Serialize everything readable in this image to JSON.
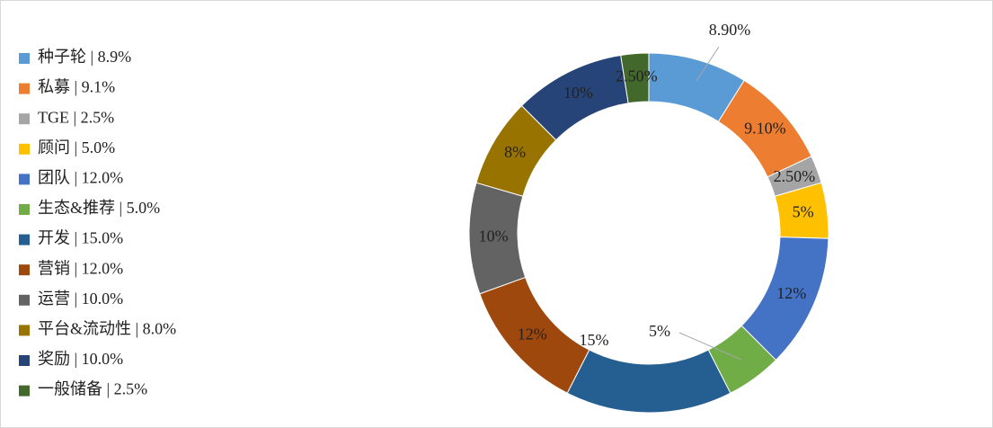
{
  "chart_data": {
    "type": "doughnut",
    "categories": [
      "种子轮 | 8.9%",
      "私募 | 9.1%",
      "TGE | 2.5%",
      "顾问 | 5.0%",
      "团队 | 12.0%",
      "生态&推荐 | 5.0%",
      "开发 | 15.0%",
      "营销 | 12.0%",
      "运营 | 10.0%",
      "平台&流动性 | 8.0%",
      "奖励 | 10.0%",
      "一般储备 | 2.5%"
    ],
    "values": [
      8.9,
      9.1,
      2.5,
      5,
      12,
      5,
      15,
      12,
      10,
      8,
      10,
      2.5
    ],
    "value_labels": [
      "8.90%",
      "9.10%",
      "2.50%",
      "5%",
      "12%",
      "5%",
      "15%",
      "12%",
      "10%",
      "8%",
      "10%",
      "2.50%"
    ],
    "colors": [
      "#5b9bd5",
      "#ed7d31",
      "#a5a5a5",
      "#ffc000",
      "#4472c4",
      "#70ad47",
      "#255e91",
      "#9e480e",
      "#636363",
      "#997300",
      "#264478",
      "#43682b"
    ],
    "legend": "left"
  }
}
